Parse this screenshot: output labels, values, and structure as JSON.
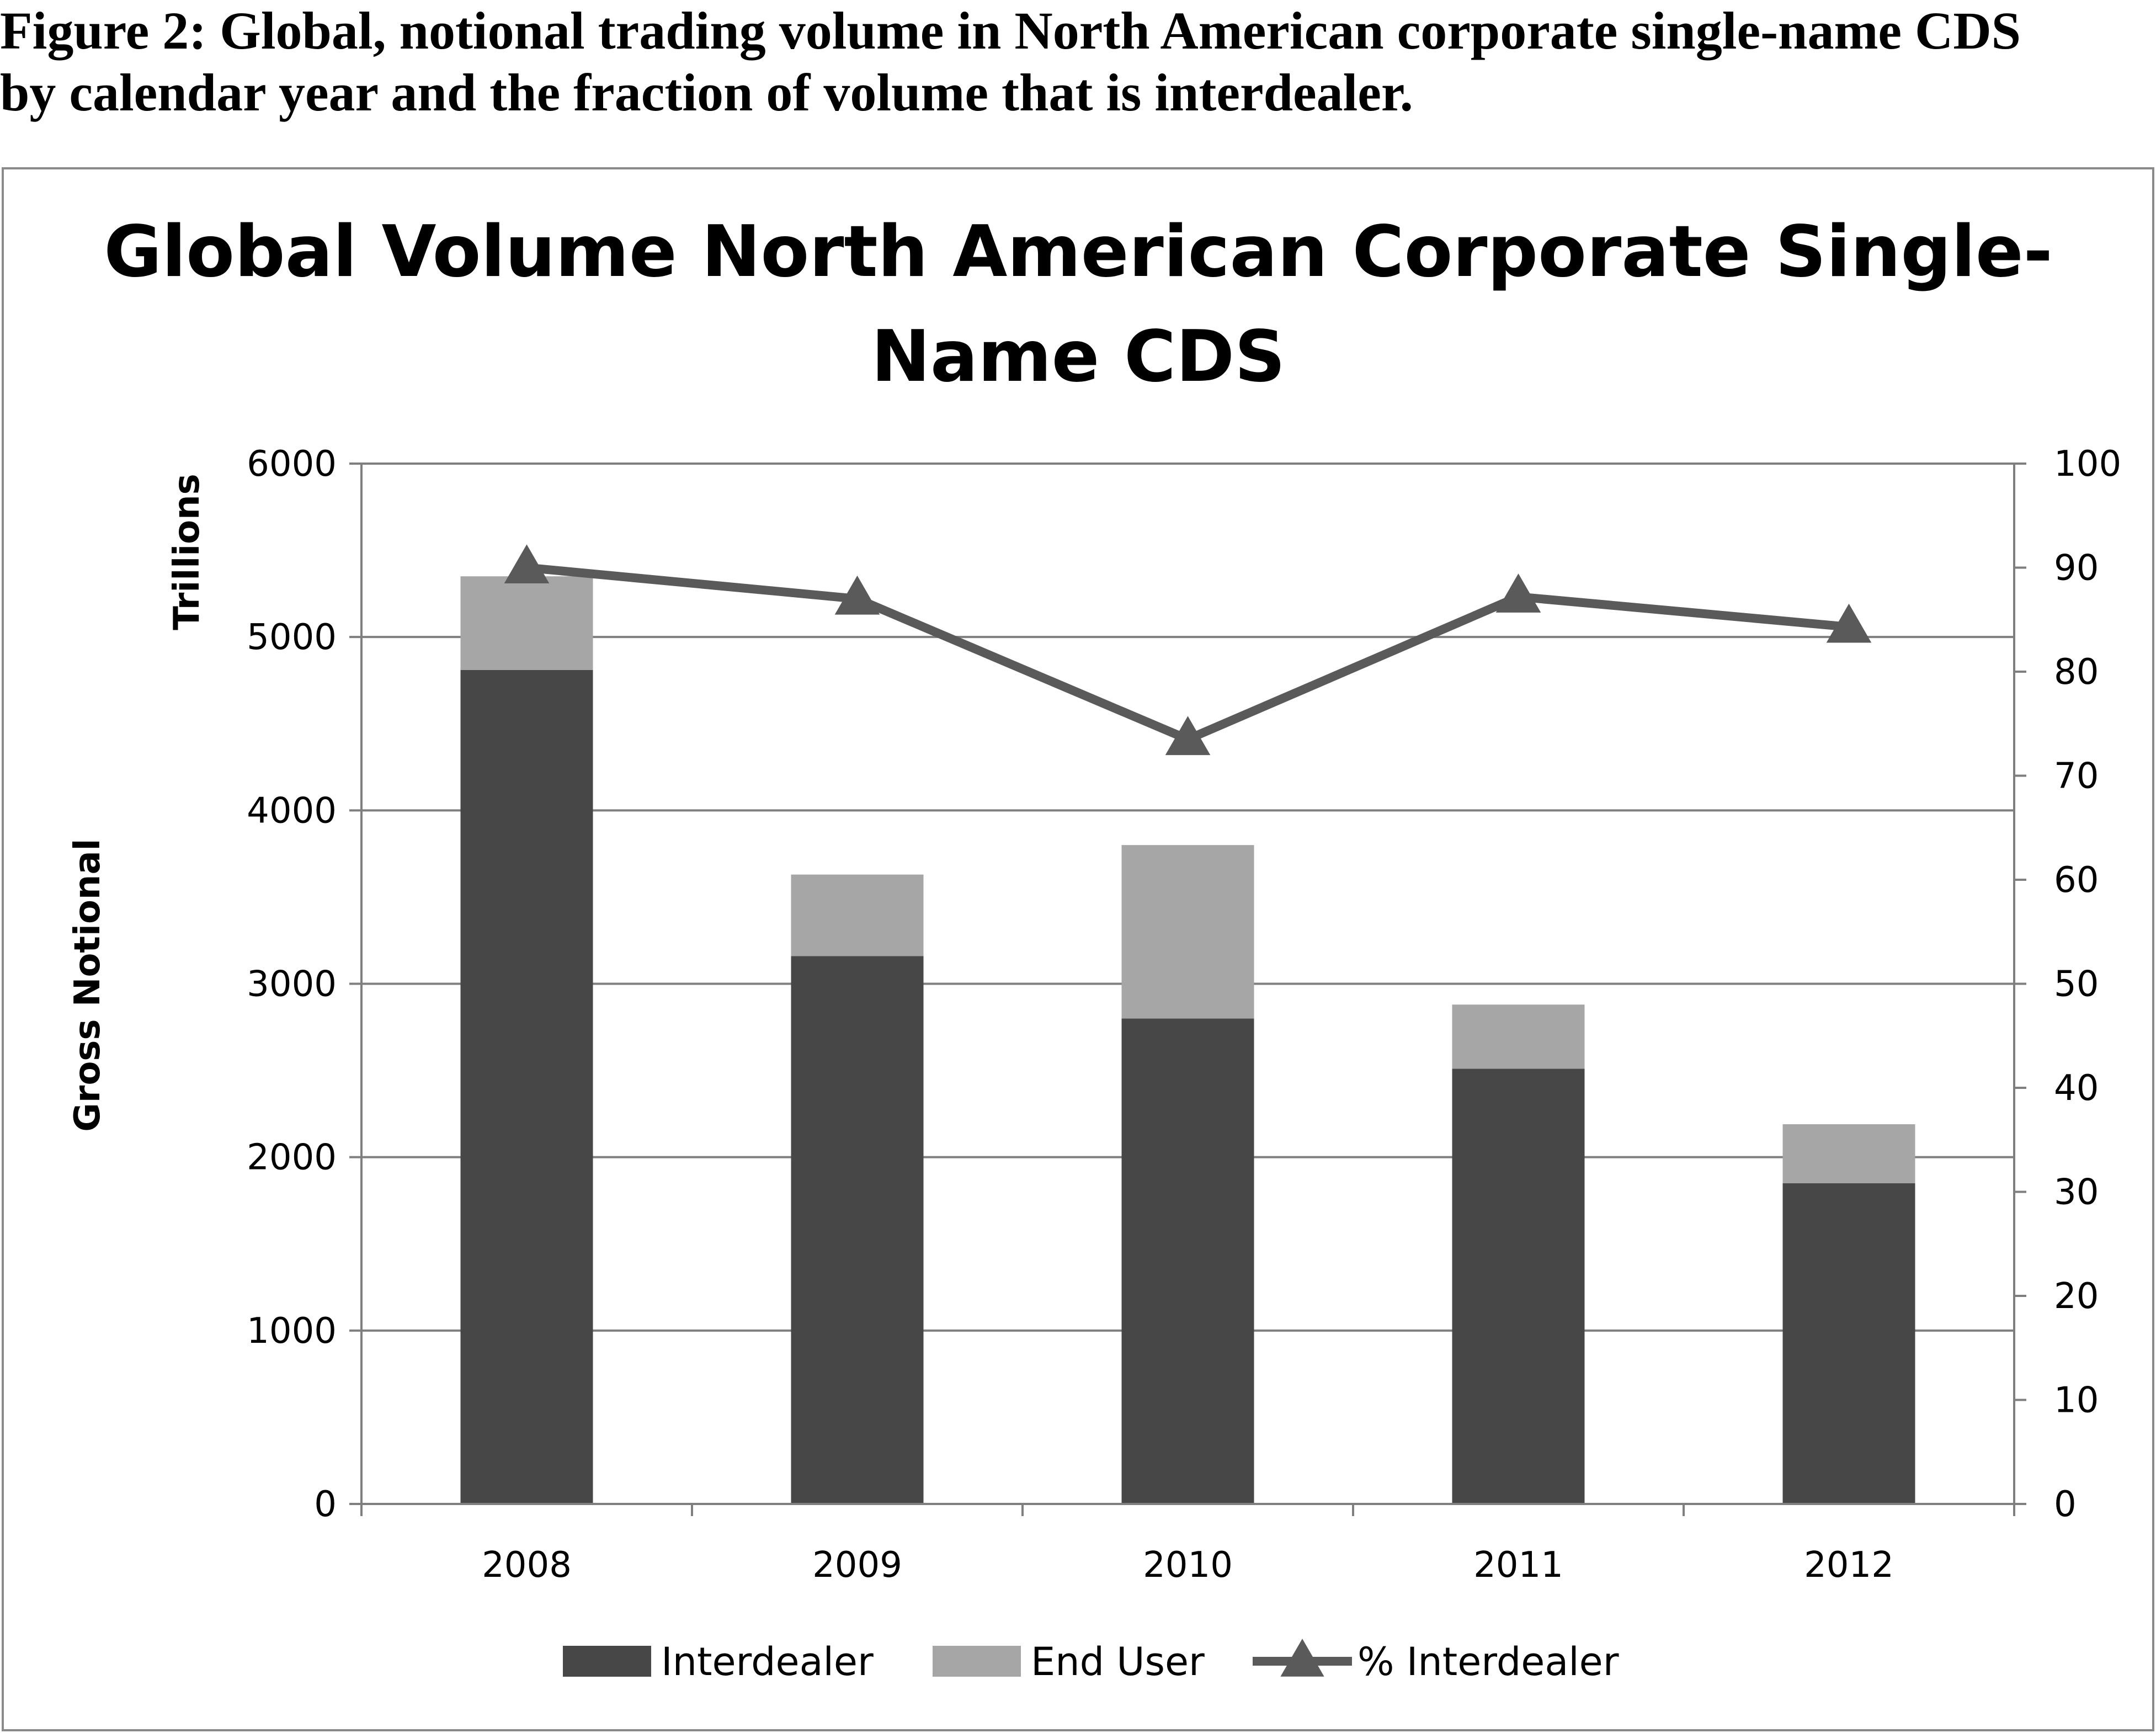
{
  "figure": {
    "caption_line1": "Figure 2: Global, notional trading volume in North American corporate single-name CDS",
    "caption_line2": "by calendar year and the fraction of volume that is interdealer."
  },
  "chart_data": {
    "type": "bar",
    "stacked": true,
    "title_line1": "Global Volume North American Corporate Single-",
    "title_line2": "Name CDS",
    "ylabel": "Gross Notional",
    "ylabel_unit": "Trillions",
    "xlabel": "",
    "categories": [
      "2008",
      "2009",
      "2010",
      "2011",
      "2012"
    ],
    "ylim": [
      0,
      6000
    ],
    "y_ticks": [
      "0",
      "1000",
      "2000",
      "3000",
      "4000",
      "5000",
      "6000"
    ],
    "y2lim": [
      0,
      100
    ],
    "y2_ticks": [
      "0",
      "10",
      "20",
      "30",
      "40",
      "50",
      "60",
      "70",
      "80",
      "90",
      "100"
    ],
    "grid": true,
    "legend_position": "bottom",
    "series": [
      {
        "name": "Interdealer",
        "type": "bar",
        "axis": "left",
        "color": "#474747",
        "values": [
          4810,
          3160,
          2800,
          2510,
          1850
        ]
      },
      {
        "name": "End User",
        "type": "bar",
        "axis": "left",
        "color": "#a6a6a6",
        "values": [
          540,
          470,
          1000,
          370,
          340
        ]
      },
      {
        "name": "% Interdealer",
        "type": "line",
        "axis": "right",
        "color": "#5a5a5a",
        "marker": "triangle",
        "values": [
          90,
          87,
          73.5,
          87.2,
          84.3
        ]
      }
    ]
  }
}
